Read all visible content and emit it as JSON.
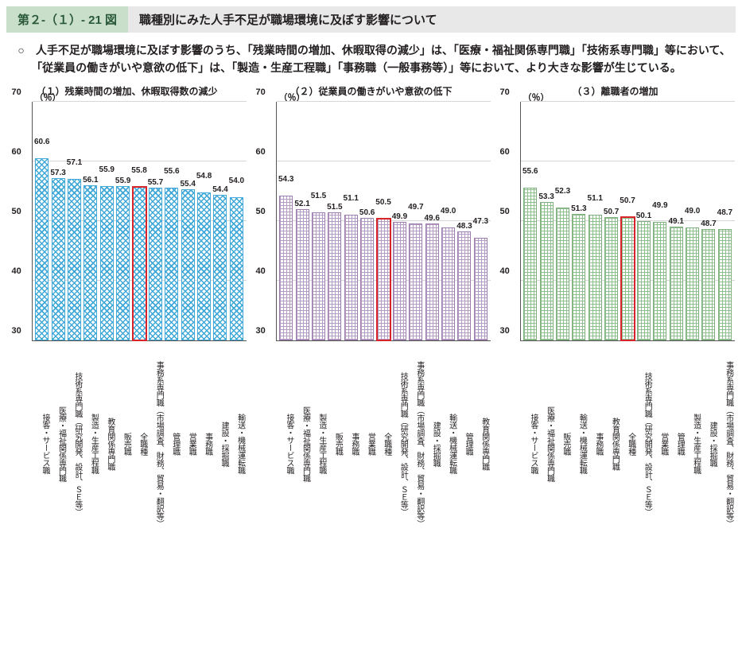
{
  "header": {
    "figure_number": "第２-（１）- 21 図",
    "title": "職種別にみた人手不足が職場環境に及ぼす影響について"
  },
  "description": "○　人手不足が職場環境に及ぼす影響のうち、「残業時間の増加、休暇取得の減少」は、「医療・福祉関係専門職」「技術系専門職」等において、「従業員の働きがいや意欲の低下」は、「製造・生産工程職」「事務職（一般事務等）」等において、より大きな影響が生じている。",
  "axis": {
    "y_unit": "（％）",
    "y_min": 30,
    "y_max": 70,
    "y_ticks": [
      30,
      40,
      50,
      60,
      70
    ]
  },
  "colors": {
    "highlight_border": "#d8232a",
    "grid": "#d7d7d7",
    "axis": "#555555",
    "blue": "#3fa8d8",
    "purple": "#9b7db0",
    "green": "#7db07d",
    "header_green_bg": "#c9dfc9",
    "header_green_text": "#2a5a3a",
    "header_gray_bg": "#e8e8e8"
  },
  "panels": [
    {
      "title": "（１）残業時間の増加、休暇取得数の減少",
      "pattern": "pat-blue",
      "highlight_index": 6,
      "bars": [
        {
          "label": "接客・サービス職",
          "value": 60.6
        },
        {
          "label": "医療・福祉関係専門職",
          "value": 57.3
        },
        {
          "label": "技術系専門職（研究開発、設計、ＳＥ等）",
          "value": 57.1
        },
        {
          "label": "製造・生産工程職",
          "value": 56.1
        },
        {
          "label": "教育関係専門職",
          "value": 55.9
        },
        {
          "label": "販売職",
          "value": 55.9
        },
        {
          "label": "全職種",
          "value": 55.8
        },
        {
          "label": "事務系専門職（市場調査、財務、貿易・翻訳等）",
          "value": 55.7
        },
        {
          "label": "管理職",
          "value": 55.6
        },
        {
          "label": "営業職",
          "value": 55.4
        },
        {
          "label": "事務職",
          "value": 54.8
        },
        {
          "label": "建設・採掘職",
          "value": 54.4
        },
        {
          "label": "輸送・機械運転職",
          "value": 54.0
        }
      ]
    },
    {
      "title": "（２）従業員の働きがいや意欲の低下",
      "pattern": "pat-purple",
      "highlight_index": 6,
      "bars": [
        {
          "label": "接客・サービス職",
          "value": 54.3
        },
        {
          "label": "医療・福祉関係専門職",
          "value": 52.1
        },
        {
          "label": "製造・生産工程職",
          "value": 51.5
        },
        {
          "label": "販売職",
          "value": 51.5
        },
        {
          "label": "事務職",
          "value": 51.1
        },
        {
          "label": "営業職",
          "value": 50.6
        },
        {
          "label": "全職種",
          "value": 50.5
        },
        {
          "label": "技術系専門職（研究開発、設計、ＳＥ等）",
          "value": 49.9
        },
        {
          "label": "事務系専門職（市場調査、財務、貿易・翻訳等）",
          "value": 49.7
        },
        {
          "label": "建設・採掘職",
          "value": 49.6
        },
        {
          "label": "輸送・機械運転職",
          "value": 49.0
        },
        {
          "label": "管理職",
          "value": 48.3
        },
        {
          "label": "教育関係専門職",
          "value": 47.3
        }
      ]
    },
    {
      "title": "（３）離職者の増加",
      "pattern": "pat-green",
      "highlight_index": 6,
      "bars": [
        {
          "label": "接客・サービス職",
          "value": 55.6
        },
        {
          "label": "医療・福祉関係専門職",
          "value": 53.3
        },
        {
          "label": "販売職",
          "value": 52.3
        },
        {
          "label": "輸送・機械運転職",
          "value": 51.3
        },
        {
          "label": "事務職",
          "value": 51.1
        },
        {
          "label": "教育関係専門職",
          "value": 50.7
        },
        {
          "label": "全職種",
          "value": 50.7
        },
        {
          "label": "技術系専門職（研究開発、設計、ＳＥ等）",
          "value": 50.1
        },
        {
          "label": "営業職",
          "value": 49.9
        },
        {
          "label": "管理職",
          "value": 49.1
        },
        {
          "label": "製造・生産工程職",
          "value": 49.0
        },
        {
          "label": "建設・採掘職",
          "value": 48.7
        },
        {
          "label": "事務系専門職（市場調査、財務、貿易・翻訳等）",
          "value": 48.7
        }
      ]
    }
  ]
}
